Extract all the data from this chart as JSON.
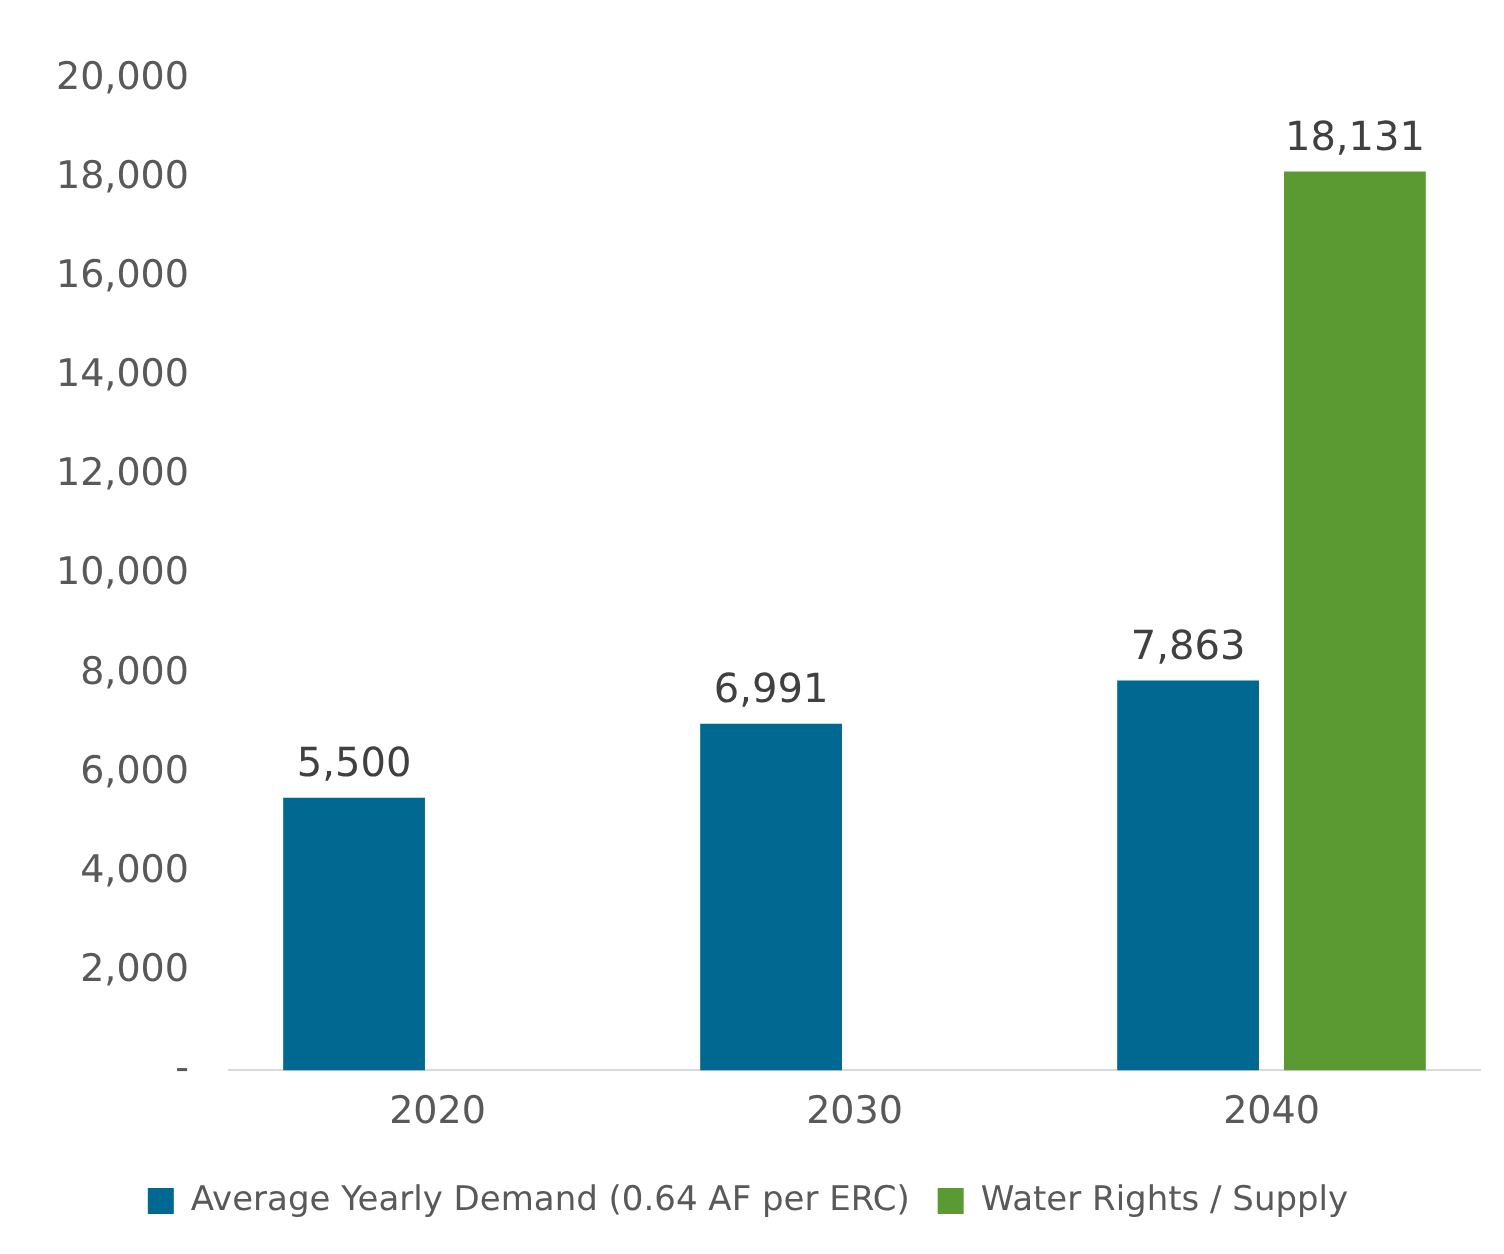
{
  "chart_data": {
    "type": "bar",
    "categories": [
      "2020",
      "2030",
      "2040"
    ],
    "series": [
      {
        "name": "Average Yearly Demand (0.64 AF per ERC)",
        "color": "#006891",
        "values": [
          5500,
          6991,
          7863
        ],
        "value_labels": [
          "5,500",
          "6,991",
          "7,863"
        ]
      },
      {
        "name": "Water Rights / Supply",
        "color": "#5b9a32",
        "values": [
          null,
          null,
          18131
        ],
        "value_labels": [
          null,
          null,
          "18,131"
        ]
      }
    ],
    "ylim": [
      0,
      20000
    ],
    "yticks": [
      {
        "value": 0,
        "label": "-"
      },
      {
        "value": 2000,
        "label": "2,000"
      },
      {
        "value": 4000,
        "label": "4,000"
      },
      {
        "value": 6000,
        "label": "6,000"
      },
      {
        "value": 8000,
        "label": "8,000"
      },
      {
        "value": 10000,
        "label": "10,000"
      },
      {
        "value": 12000,
        "label": "12,000"
      },
      {
        "value": 14000,
        "label": "14,000"
      },
      {
        "value": 16000,
        "label": "16,000"
      },
      {
        "value": 18000,
        "label": "18,000"
      },
      {
        "value": 20000,
        "label": "20,000"
      }
    ],
    "grid": false,
    "legend": "bottom"
  }
}
